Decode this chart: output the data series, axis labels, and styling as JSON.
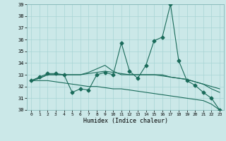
{
  "xlabel": "Humidex (Indice chaleur)",
  "bg_color": "#cbe8e8",
  "grid_color": "#a8d4d4",
  "line_color": "#1a6b5a",
  "xlim": [
    -0.5,
    23.5
  ],
  "ylim": [
    30,
    39
  ],
  "yticks": [
    30,
    31,
    32,
    33,
    34,
    35,
    36,
    37,
    38,
    39
  ],
  "xticks": [
    0,
    1,
    2,
    3,
    4,
    5,
    6,
    7,
    8,
    9,
    10,
    11,
    12,
    13,
    14,
    15,
    16,
    17,
    18,
    19,
    20,
    21,
    22,
    23
  ],
  "line1_x": [
    0,
    1,
    2,
    3,
    4,
    5,
    6,
    7,
    8,
    9,
    10,
    11,
    12,
    13,
    14,
    15,
    16,
    17,
    18,
    19,
    20,
    21,
    22,
    23
  ],
  "line1_y": [
    32.5,
    32.8,
    33.1,
    33.1,
    33.0,
    31.5,
    31.8,
    31.7,
    33.0,
    33.2,
    33.0,
    35.7,
    33.3,
    32.7,
    33.8,
    35.9,
    36.2,
    39.0,
    34.2,
    32.5,
    32.1,
    31.5,
    31.0,
    30.0
  ],
  "line2_x": [
    0,
    1,
    2,
    3,
    4,
    5,
    6,
    7,
    8,
    9,
    10,
    11,
    12,
    13,
    14,
    15,
    16,
    17,
    18,
    19,
    20,
    21,
    22,
    23
  ],
  "line2_y": [
    32.5,
    32.7,
    33.0,
    33.0,
    33.0,
    33.0,
    33.0,
    33.1,
    33.2,
    33.3,
    33.2,
    33.1,
    33.0,
    33.0,
    33.0,
    33.0,
    32.9,
    32.8,
    32.7,
    32.6,
    32.4,
    32.2,
    32.0,
    31.8
  ],
  "line3_x": [
    0,
    1,
    2,
    3,
    4,
    5,
    6,
    7,
    8,
    9,
    10,
    11,
    12,
    13,
    14,
    15,
    16,
    17,
    18,
    19,
    20,
    21,
    22,
    23
  ],
  "line3_y": [
    32.5,
    32.7,
    33.0,
    33.0,
    33.0,
    33.0,
    33.0,
    33.2,
    33.5,
    33.8,
    33.3,
    33.0,
    33.0,
    33.0,
    33.0,
    33.0,
    33.0,
    32.8,
    32.7,
    32.6,
    32.4,
    32.2,
    31.8,
    31.5
  ],
  "line4_x": [
    0,
    1,
    2,
    3,
    4,
    5,
    6,
    7,
    8,
    9,
    10,
    11,
    12,
    13,
    14,
    15,
    16,
    17,
    18,
    19,
    20,
    21,
    22,
    23
  ],
  "line4_y": [
    32.5,
    32.5,
    32.5,
    32.4,
    32.3,
    32.2,
    32.1,
    32.0,
    32.0,
    31.9,
    31.8,
    31.8,
    31.7,
    31.6,
    31.5,
    31.4,
    31.3,
    31.2,
    31.1,
    31.0,
    30.9,
    30.8,
    30.5,
    30.0
  ]
}
